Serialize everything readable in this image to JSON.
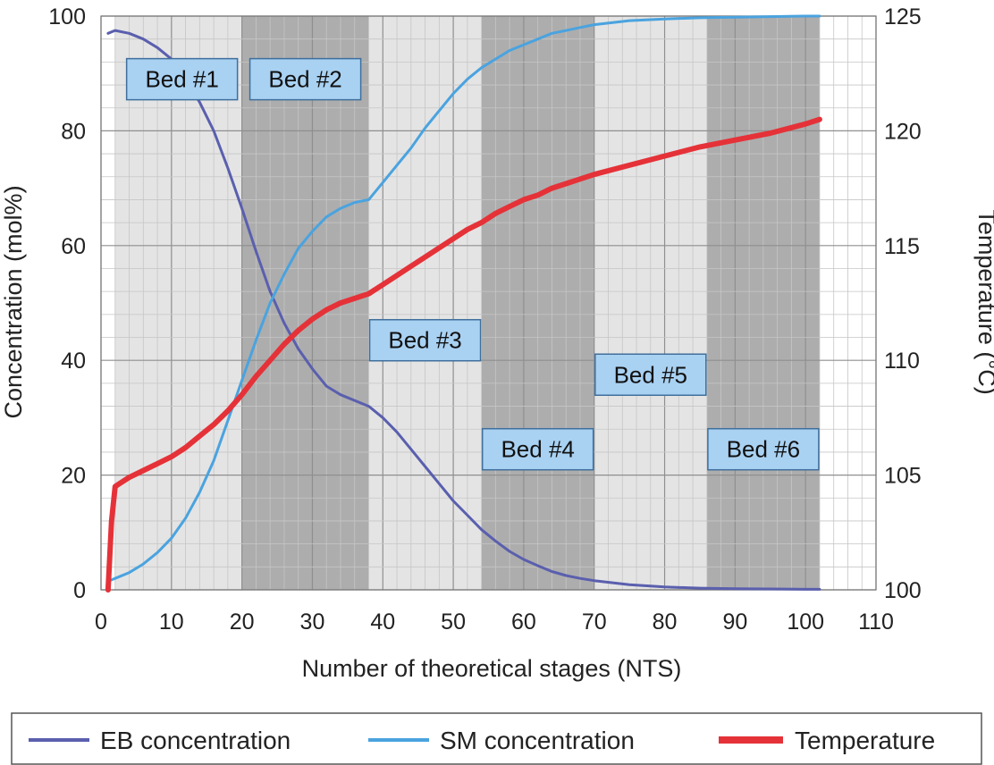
{
  "chart_data": {
    "type": "line",
    "xlabel": "Number of theoretical stages (NTS)",
    "ylabel": "Concentration (mol%)",
    "y2label": "Temperature (°C)",
    "xlim": [
      0,
      110
    ],
    "ylim": [
      0,
      100
    ],
    "y2lim": [
      100,
      125
    ],
    "x_ticks": [
      0,
      10,
      20,
      30,
      40,
      50,
      60,
      70,
      80,
      90,
      100,
      110
    ],
    "y_ticks": [
      0,
      20,
      40,
      60,
      80,
      100
    ],
    "y2_ticks": [
      100,
      105,
      110,
      115,
      120,
      125
    ],
    "grid": true,
    "legend_position": "bottom",
    "beds": [
      {
        "label": "Bed #1",
        "start": 2,
        "end": 20,
        "shade": "light"
      },
      {
        "label": "Bed #2",
        "start": 20,
        "end": 38,
        "shade": "dark"
      },
      {
        "label": "Bed #3",
        "start": 38,
        "end": 54,
        "shade": "light"
      },
      {
        "label": "Bed #4",
        "start": 54,
        "end": 70,
        "shade": "dark"
      },
      {
        "label": "Bed #5",
        "start": 70,
        "end": 86,
        "shade": "light"
      },
      {
        "label": "Bed #6",
        "start": 86,
        "end": 102,
        "shade": "dark"
      }
    ],
    "bed_label_positions": [
      {
        "x": 11.5,
        "y": 89
      },
      {
        "x": 29,
        "y": 89
      },
      {
        "x": 46,
        "y": 43.5
      },
      {
        "x": 62,
        "y": 24.5
      },
      {
        "x": 78,
        "y": 37.5
      },
      {
        "x": 94,
        "y": 24.5
      }
    ],
    "series": [
      {
        "name": "EB concentration",
        "axis": "left",
        "color": "#5a5fae",
        "x": [
          1,
          2,
          4,
          6,
          8,
          10,
          12,
          14,
          16,
          18,
          20,
          22,
          24,
          26,
          28,
          30,
          32,
          34,
          36,
          38,
          40,
          42,
          44,
          46,
          48,
          50,
          52,
          54,
          56,
          58,
          60,
          62,
          64,
          66,
          68,
          70,
          75,
          80,
          85,
          90,
          95,
          100,
          102
        ],
        "y": [
          97,
          97.5,
          97,
          96,
          94.5,
          92.5,
          89,
          85,
          80,
          73.5,
          66.5,
          59,
          52,
          46.5,
          42,
          38.5,
          35.5,
          34,
          33,
          32,
          30,
          27.5,
          24.5,
          21.5,
          18.5,
          15.5,
          13,
          10.5,
          8.5,
          6.7,
          5.3,
          4.2,
          3.2,
          2.5,
          2,
          1.6,
          0.9,
          0.5,
          0.3,
          0.2,
          0.15,
          0.1,
          0.1
        ]
      },
      {
        "name": "SM concentration",
        "axis": "left",
        "color": "#4aa3df",
        "x": [
          1,
          2,
          4,
          6,
          8,
          10,
          12,
          14,
          16,
          18,
          20,
          22,
          24,
          26,
          28,
          30,
          32,
          34,
          36,
          38,
          40,
          42,
          44,
          46,
          48,
          50,
          52,
          54,
          56,
          58,
          60,
          62,
          64,
          66,
          68,
          70,
          75,
          80,
          85,
          90,
          95,
          100,
          102
        ],
        "y": [
          1.5,
          2,
          3,
          4.5,
          6.5,
          9,
          12.5,
          17,
          22.5,
          29.5,
          36.5,
          43.5,
          50,
          55,
          59.5,
          62.5,
          65,
          66.5,
          67.5,
          68,
          71,
          74,
          77,
          80.5,
          83.5,
          86.5,
          89,
          91,
          92.5,
          94,
          95,
          96,
          97,
          97.5,
          98,
          98.5,
          99.2,
          99.5,
          99.7,
          99.8,
          99.9,
          100,
          100
        ]
      },
      {
        "name": "Temperature",
        "axis": "right",
        "color": "#e53238",
        "x": [
          1,
          1.5,
          2,
          3,
          4,
          6,
          8,
          10,
          12,
          14,
          16,
          18,
          20,
          22,
          24,
          26,
          28,
          30,
          32,
          34,
          36,
          38,
          40,
          42,
          44,
          46,
          48,
          50,
          52,
          54,
          56,
          58,
          60,
          62,
          64,
          66,
          68,
          70,
          75,
          80,
          85,
          90,
          95,
          100,
          102
        ],
        "y": [
          100,
          103,
          104.5,
          104.7,
          104.9,
          105.2,
          105.5,
          105.8,
          106.2,
          106.7,
          107.2,
          107.8,
          108.5,
          109.3,
          110,
          110.7,
          111.3,
          111.8,
          112.2,
          112.5,
          112.7,
          112.9,
          113.3,
          113.7,
          114.1,
          114.5,
          114.9,
          115.3,
          115.7,
          116.0,
          116.4,
          116.7,
          117.0,
          117.2,
          117.5,
          117.7,
          117.9,
          118.1,
          118.5,
          118.9,
          119.3,
          119.6,
          119.9,
          120.3,
          120.5
        ]
      }
    ]
  },
  "legend": {
    "items": [
      {
        "name": "EB concentration",
        "color": "#5a5fae"
      },
      {
        "name": "SM concentration",
        "color": "#4aa3df"
      },
      {
        "name": "Temperature",
        "color": "#e53238"
      }
    ]
  }
}
